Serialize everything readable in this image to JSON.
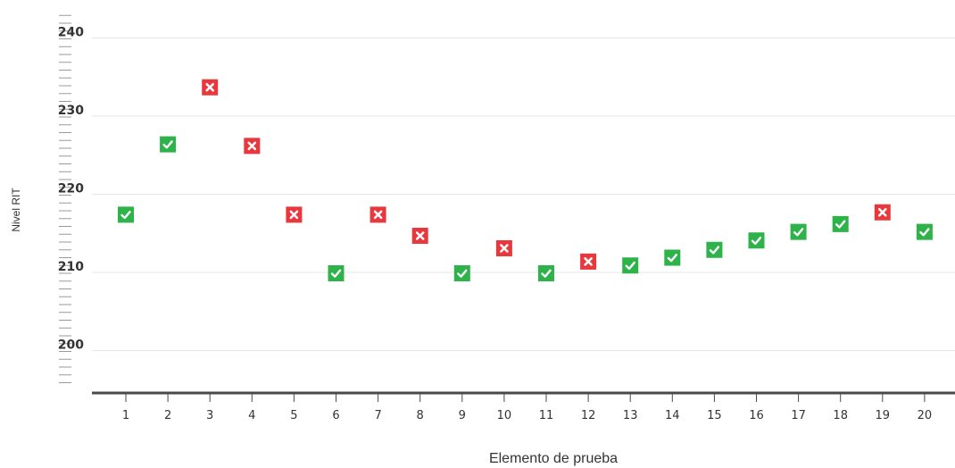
{
  "chart_data": {
    "type": "scatter",
    "title": "",
    "xlabel": "Elemento de prueba",
    "ylabel": "Nivel RIT",
    "x": [
      1,
      2,
      3,
      4,
      5,
      6,
      7,
      8,
      9,
      10,
      11,
      12,
      13,
      14,
      15,
      16,
      17,
      18,
      19,
      20
    ],
    "y": [
      217.5,
      226.5,
      233.8,
      226.3,
      217.5,
      210,
      217.5,
      214.8,
      210,
      213.2,
      210,
      211.5,
      211,
      212,
      213,
      214.2,
      215.3,
      216.3,
      217.8,
      215.3
    ],
    "correct": [
      true,
      true,
      false,
      false,
      false,
      true,
      false,
      false,
      true,
      false,
      true,
      false,
      true,
      true,
      true,
      true,
      true,
      true,
      false,
      true
    ],
    "x_ticks": [
      "1",
      "2",
      "3",
      "4",
      "5",
      "6",
      "7",
      "8",
      "9",
      "10",
      "11",
      "12",
      "13",
      "14",
      "15",
      "16",
      "17",
      "18",
      "19",
      "20"
    ],
    "y_ticks": [
      "200",
      "210",
      "220",
      "230",
      "240"
    ],
    "y_tick_values": [
      200,
      210,
      220,
      230,
      240
    ],
    "ylim": [
      194.5,
      243.5
    ],
    "grid": true,
    "colors": {
      "correct": "#2db34a",
      "incorrect": "#e8383d",
      "grid": "#e6e6e6",
      "axis": "#4a4a4a",
      "ruler": "#9a9a9a"
    },
    "icons": {
      "correct": "check-icon",
      "incorrect": "x-icon"
    }
  }
}
